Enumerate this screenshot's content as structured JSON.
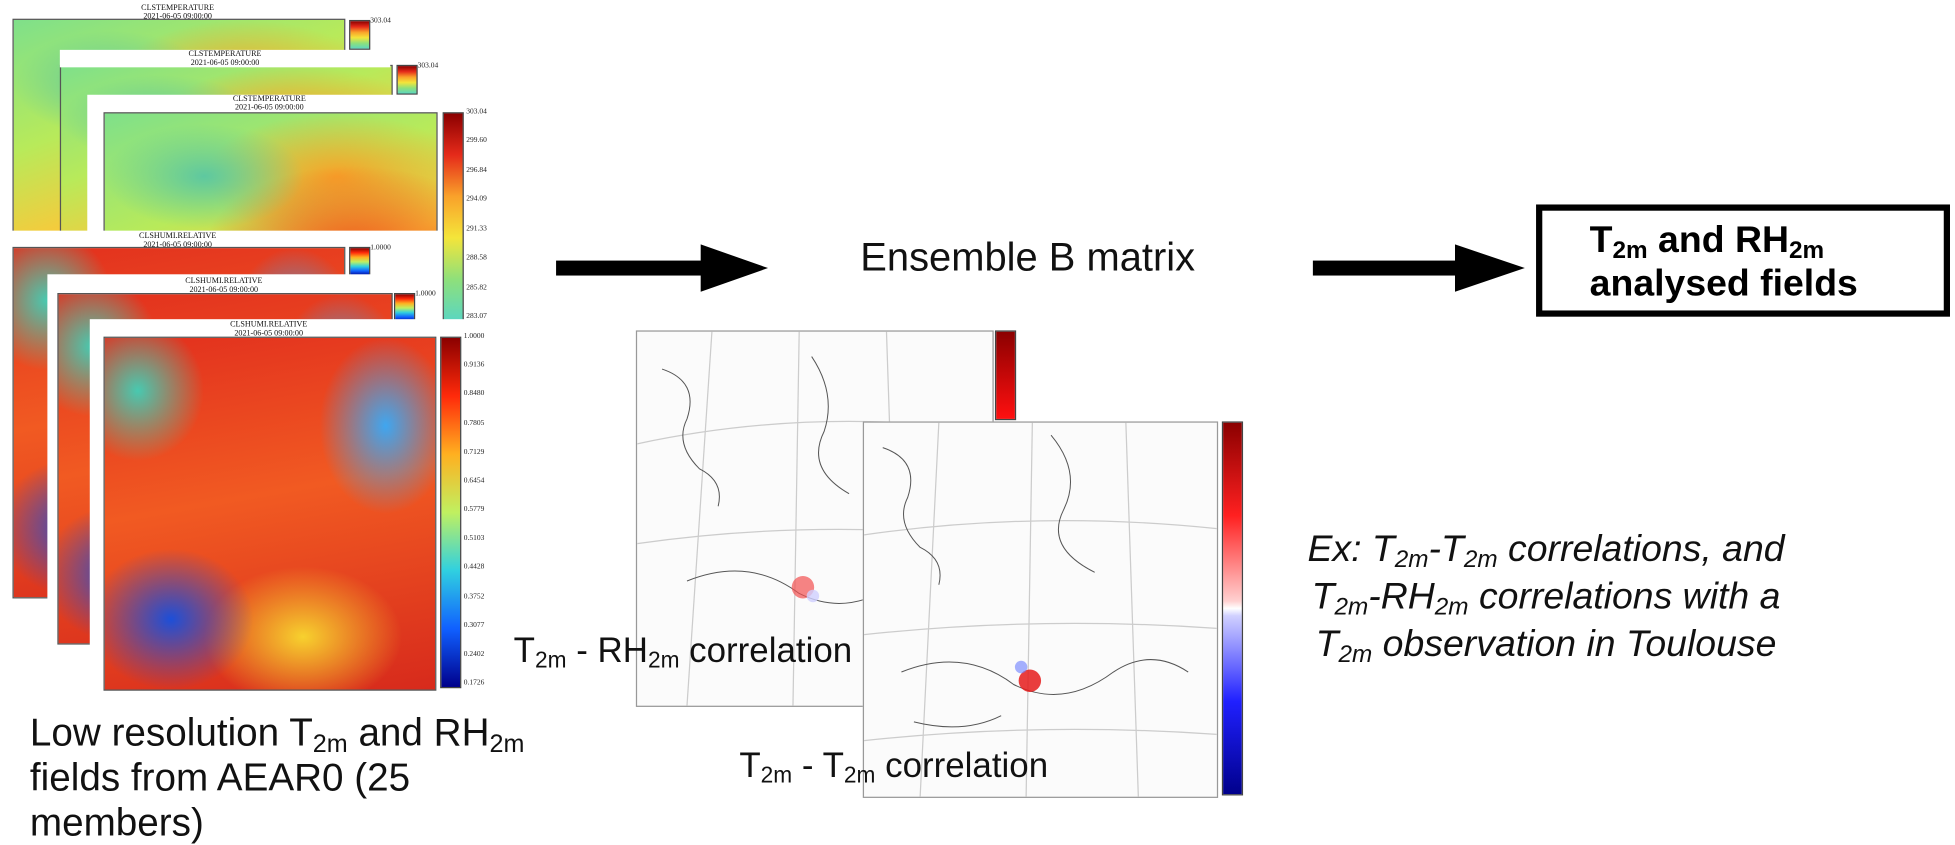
{
  "maps": {
    "temperature": {
      "title": "CLSTEMPERATURE",
      "date": "2021-06-05 09:00:00",
      "colorbar": [
        "303.04",
        "299.60",
        "296.84",
        "294.09",
        "291.33",
        "288.58",
        "285.82",
        "283.07"
      ]
    },
    "humidity": {
      "title": "CLSHUMI.RELATIVE",
      "date": "2021-06-05 09:00:00",
      "colorbar": [
        "1.0000",
        "0.9136",
        "0.8480",
        "0.7805",
        "0.7129",
        "0.6454",
        "0.5779",
        "0.5103",
        "0.4428",
        "0.3752",
        "0.3077",
        "0.2402",
        "0.1726"
      ]
    }
  },
  "input_caption": [
    [
      {
        "t": "Low resolution T"
      },
      {
        "s": "2m"
      },
      {
        "t": " and RH"
      },
      {
        "s": "2m"
      }
    ],
    [
      {
        "t": "fields from AEAR0 (25"
      }
    ],
    [
      {
        "t": "members)"
      }
    ]
  ],
  "process_label": "Ensemble B matrix",
  "output_box": [
    [
      {
        "t": "T"
      },
      {
        "s": "2m"
      },
      {
        "t": " and RH"
      },
      {
        "s": "2m"
      }
    ],
    [
      {
        "t": "analysed fields"
      }
    ]
  ],
  "correlation_labels": {
    "t_rh": [
      {
        "t": "T"
      },
      {
        "s": "2m"
      },
      {
        "t": " - RH"
      },
      {
        "s": "2m"
      },
      {
        "t": " correlation"
      }
    ],
    "t_t": [
      {
        "t": "T"
      },
      {
        "s": "2m"
      },
      {
        "t": " - T"
      },
      {
        "s": "2m"
      },
      {
        "t": " correlation"
      }
    ]
  },
  "example_note": [
    [
      {
        "t": "Ex: T"
      },
      {
        "s": "2m"
      },
      {
        "t": "-T"
      },
      {
        "s": "2m"
      },
      {
        "t": " correlations, and"
      }
    ],
    [
      {
        "t": "T"
      },
      {
        "s": "2m"
      },
      {
        "t": "-RH"
      },
      {
        "s": "2m"
      },
      {
        "t": " correlations with a"
      }
    ],
    [
      {
        "t": "T"
      },
      {
        "s": "2m"
      },
      {
        "t": " observation in Toulouse"
      }
    ]
  ]
}
